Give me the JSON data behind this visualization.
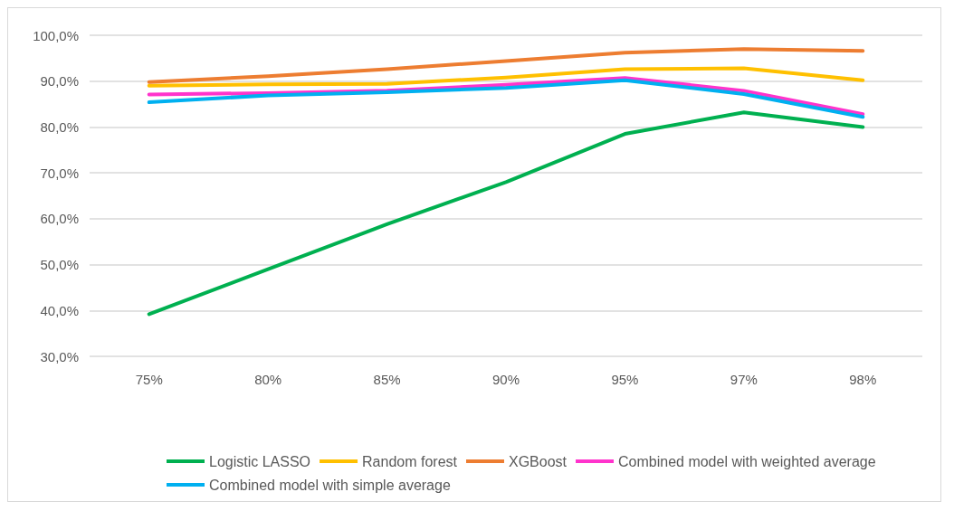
{
  "chart_data": {
    "type": "line",
    "categories": [
      "75%",
      "80%",
      "85%",
      "90%",
      "95%",
      "97%",
      "98%"
    ],
    "series": [
      {
        "name": "Logistic LASSO",
        "color": "#00b050",
        "values": [
          39.2,
          49.0,
          58.8,
          68.0,
          78.5,
          83.2,
          80.0
        ]
      },
      {
        "name": "Random forest",
        "color": "#ffc000",
        "values": [
          89.0,
          89.3,
          89.4,
          90.8,
          92.6,
          92.8,
          90.2
        ]
      },
      {
        "name": "XGBoost",
        "color": "#ed7d31",
        "values": [
          89.8,
          91.1,
          92.6,
          94.4,
          96.2,
          97.0,
          96.6
        ]
      },
      {
        "name": "Combined model with weighted average",
        "color": "#ff33cc",
        "values": [
          87.1,
          87.4,
          87.9,
          89.2,
          90.7,
          87.9,
          82.8
        ]
      },
      {
        "name": "Combined model with simple average",
        "color": "#00b0f0",
        "values": [
          85.4,
          86.9,
          87.6,
          88.5,
          90.2,
          87.2,
          82.2
        ]
      }
    ],
    "ylim": [
      30,
      100
    ],
    "yticks": [
      {
        "value": 30,
        "label": "30,0%"
      },
      {
        "value": 40,
        "label": "40,0%"
      },
      {
        "value": 50,
        "label": "50,0%"
      },
      {
        "value": 60,
        "label": "60,0%"
      },
      {
        "value": 70,
        "label": "70,0%"
      },
      {
        "value": 80,
        "label": "80,0%"
      },
      {
        "value": 90,
        "label": "90,0%"
      },
      {
        "value": 100,
        "label": "100,0%"
      }
    ],
    "grid": "y",
    "legend": "bottom",
    "marker": "none",
    "line_style": "solid"
  }
}
